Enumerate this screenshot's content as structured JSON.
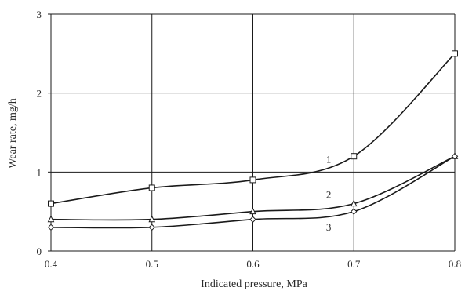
{
  "chart_data": {
    "type": "line",
    "xlabel": "Indicated pressure, MPa",
    "ylabel": "Wear rate, mg/h",
    "xlim": [
      0.4,
      0.8
    ],
    "ylim": [
      0,
      3
    ],
    "x_ticks": [
      "0.4",
      "0.5",
      "0.6",
      "0.7",
      "0.8"
    ],
    "y_ticks": [
      "0",
      "1",
      "2",
      "3"
    ],
    "grid": true,
    "legend": "none",
    "x": [
      0.4,
      0.5,
      0.6,
      0.7,
      0.8
    ],
    "series": [
      {
        "name": "1",
        "marker": "square",
        "values": [
          0.6,
          0.8,
          0.9,
          1.2,
          2.5
        ]
      },
      {
        "name": "2",
        "marker": "triangle",
        "values": [
          0.4,
          0.4,
          0.5,
          0.6,
          1.2
        ]
      },
      {
        "name": "3",
        "marker": "diamond",
        "values": [
          0.3,
          0.3,
          0.4,
          0.5,
          1.2
        ]
      }
    ],
    "colors": {
      "line": "#1a1a1a",
      "grid": "#1a1a1a",
      "text": "#2a2a2a",
      "background": "#ffffff"
    }
  }
}
